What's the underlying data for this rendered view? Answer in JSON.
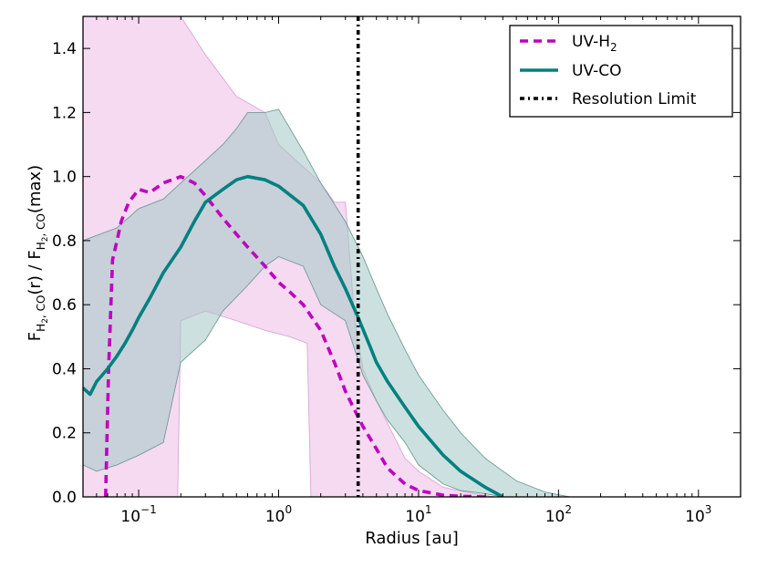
{
  "chart_data": {
    "type": "line",
    "xlabel": "Radius [au]",
    "ylabel_parts": {
      "f1": "F",
      "sub1": "H",
      "sub1b": "2",
      "sub1c": ", CO",
      "mid": "(r) / ",
      "f2": "F",
      "sub2": "H",
      "sub2b": "2",
      "sub2c": ", CO",
      "end": "(max)"
    },
    "xscale": "log",
    "xlim": [
      0.04,
      2000
    ],
    "ylim": [
      0,
      1.5
    ],
    "x_ticks": [
      {
        "value": 0.1,
        "base": "10",
        "exp": "−1"
      },
      {
        "value": 1,
        "base": "10",
        "exp": "0"
      },
      {
        "value": 10,
        "base": "10",
        "exp": "1"
      },
      {
        "value": 100,
        "base": "10",
        "exp": "2"
      },
      {
        "value": 1000,
        "base": "10",
        "exp": "3"
      }
    ],
    "y_ticks": [
      {
        "value": 0.0,
        "label": "0.0"
      },
      {
        "value": 0.2,
        "label": "0.2"
      },
      {
        "value": 0.4,
        "label": "0.4"
      },
      {
        "value": 0.6,
        "label": "0.6"
      },
      {
        "value": 0.8,
        "label": "0.8"
      },
      {
        "value": 1.0,
        "label": "1.0"
      },
      {
        "value": 1.2,
        "label": "1.2"
      },
      {
        "value": 1.4,
        "label": "1.4"
      }
    ],
    "legend_position": "top-right",
    "resolution_limit_x": 3.7,
    "series": [
      {
        "name": "UV-H2",
        "legend_base": "UV-H",
        "legend_sub": "2",
        "color": "#bf00bf",
        "dash": "dashed",
        "band_fill": "#f2cdee",
        "points": [
          [
            0.058,
            0
          ],
          [
            0.061,
            0.4
          ],
          [
            0.065,
            0.74
          ],
          [
            0.07,
            0.8
          ],
          [
            0.075,
            0.86
          ],
          [
            0.085,
            0.92
          ],
          [
            0.1,
            0.96
          ],
          [
            0.12,
            0.95
          ],
          [
            0.15,
            0.98
          ],
          [
            0.2,
            1.0
          ],
          [
            0.25,
            0.98
          ],
          [
            0.3,
            0.94
          ],
          [
            0.4,
            0.87
          ],
          [
            0.5,
            0.82
          ],
          [
            0.6,
            0.78
          ],
          [
            0.8,
            0.72
          ],
          [
            1.0,
            0.67
          ],
          [
            1.2,
            0.64
          ],
          [
            1.5,
            0.6
          ],
          [
            2.0,
            0.52
          ],
          [
            2.5,
            0.42
          ],
          [
            3.0,
            0.33
          ],
          [
            3.5,
            0.27
          ],
          [
            4.0,
            0.22
          ],
          [
            5.0,
            0.15
          ],
          [
            6.0,
            0.09
          ],
          [
            8.0,
            0.04
          ],
          [
            10.0,
            0.02
          ],
          [
            15.0,
            0.005
          ],
          [
            20.0,
            0.002
          ],
          [
            30.0,
            0
          ]
        ],
        "band_upper": [
          [
            0.04,
            1.5
          ],
          [
            0.2,
            1.5
          ],
          [
            0.3,
            1.38
          ],
          [
            0.5,
            1.25
          ],
          [
            0.8,
            1.2
          ],
          [
            1.0,
            1.1
          ],
          [
            2.0,
            0.98
          ],
          [
            2.5,
            0.92
          ],
          [
            3.0,
            0.92
          ],
          [
            3.5,
            0.55
          ],
          [
            4.0,
            0.4
          ],
          [
            5.0,
            0.3
          ],
          [
            6.0,
            0.23
          ],
          [
            8.0,
            0.12
          ],
          [
            10.0,
            0.08
          ],
          [
            15.0,
            0.03
          ],
          [
            25.0,
            0.01
          ],
          [
            35.0,
            0
          ]
        ],
        "band_lower": [
          [
            0.04,
            0
          ],
          [
            0.19,
            0
          ],
          [
            0.2,
            0.55
          ],
          [
            0.3,
            0.58
          ],
          [
            0.5,
            0.55
          ],
          [
            0.8,
            0.52
          ],
          [
            1.2,
            0.5
          ],
          [
            1.6,
            0.48
          ],
          [
            1.7,
            0
          ],
          [
            3.5,
            0
          ]
        ]
      },
      {
        "name": "UV-CO",
        "legend_base": "UV-CO",
        "legend_sub": "",
        "color": "#008080",
        "dash": "solid",
        "band_fill": "#a3c8c5",
        "points": [
          [
            0.04,
            0.34
          ],
          [
            0.045,
            0.32
          ],
          [
            0.05,
            0.36
          ],
          [
            0.06,
            0.4
          ],
          [
            0.07,
            0.44
          ],
          [
            0.08,
            0.48
          ],
          [
            0.09,
            0.52
          ],
          [
            0.1,
            0.56
          ],
          [
            0.12,
            0.62
          ],
          [
            0.15,
            0.7
          ],
          [
            0.2,
            0.78
          ],
          [
            0.25,
            0.86
          ],
          [
            0.3,
            0.92
          ],
          [
            0.4,
            0.96
          ],
          [
            0.5,
            0.99
          ],
          [
            0.6,
            1.0
          ],
          [
            0.8,
            0.99
          ],
          [
            1.0,
            0.97
          ],
          [
            1.5,
            0.91
          ],
          [
            2.0,
            0.82
          ],
          [
            2.5,
            0.72
          ],
          [
            3.0,
            0.65
          ],
          [
            3.7,
            0.56
          ],
          [
            4.5,
            0.47
          ],
          [
            5.0,
            0.42
          ],
          [
            6.0,
            0.36
          ],
          [
            8.0,
            0.28
          ],
          [
            10.0,
            0.22
          ],
          [
            15.0,
            0.13
          ],
          [
            20.0,
            0.08
          ],
          [
            30.0,
            0.03
          ],
          [
            40.0,
            0
          ]
        ],
        "band_upper": [
          [
            0.04,
            0.8
          ],
          [
            0.07,
            0.84
          ],
          [
            0.1,
            0.9
          ],
          [
            0.15,
            0.93
          ],
          [
            0.2,
            0.98
          ],
          [
            0.3,
            1.05
          ],
          [
            0.4,
            1.1
          ],
          [
            0.5,
            1.15
          ],
          [
            0.6,
            1.2
          ],
          [
            0.8,
            1.2
          ],
          [
            1.0,
            1.21
          ],
          [
            1.5,
            1.08
          ],
          [
            2.0,
            0.98
          ],
          [
            3.0,
            0.86
          ],
          [
            4.0,
            0.75
          ],
          [
            5.0,
            0.65
          ],
          [
            6.0,
            0.57
          ],
          [
            8.0,
            0.46
          ],
          [
            10.0,
            0.38
          ],
          [
            15.0,
            0.27
          ],
          [
            20.0,
            0.2
          ],
          [
            30.0,
            0.12
          ],
          [
            50.0,
            0.05
          ],
          [
            80.0,
            0.015
          ],
          [
            120.0,
            0
          ]
        ],
        "band_lower": [
          [
            0.04,
            0.1
          ],
          [
            0.05,
            0.08
          ],
          [
            0.07,
            0.1
          ],
          [
            0.1,
            0.13
          ],
          [
            0.15,
            0.17
          ],
          [
            0.2,
            0.42
          ],
          [
            0.3,
            0.49
          ],
          [
            0.4,
            0.58
          ],
          [
            0.6,
            0.66
          ],
          [
            0.8,
            0.72
          ],
          [
            1.0,
            0.75
          ],
          [
            1.5,
            0.72
          ],
          [
            2.0,
            0.6
          ],
          [
            3.0,
            0.55
          ],
          [
            4.0,
            0.38
          ],
          [
            5.0,
            0.3
          ],
          [
            6.0,
            0.24
          ],
          [
            8.0,
            0.17
          ],
          [
            10.0,
            0.1
          ],
          [
            15.0,
            0.04
          ],
          [
            20.0,
            0.02
          ],
          [
            30.0,
            0.01
          ],
          [
            40.0,
            0
          ]
        ]
      }
    ],
    "reference_lines": [
      {
        "name": "Resolution Limit",
        "color": "#000000",
        "dash": "dashdot"
      }
    ]
  }
}
